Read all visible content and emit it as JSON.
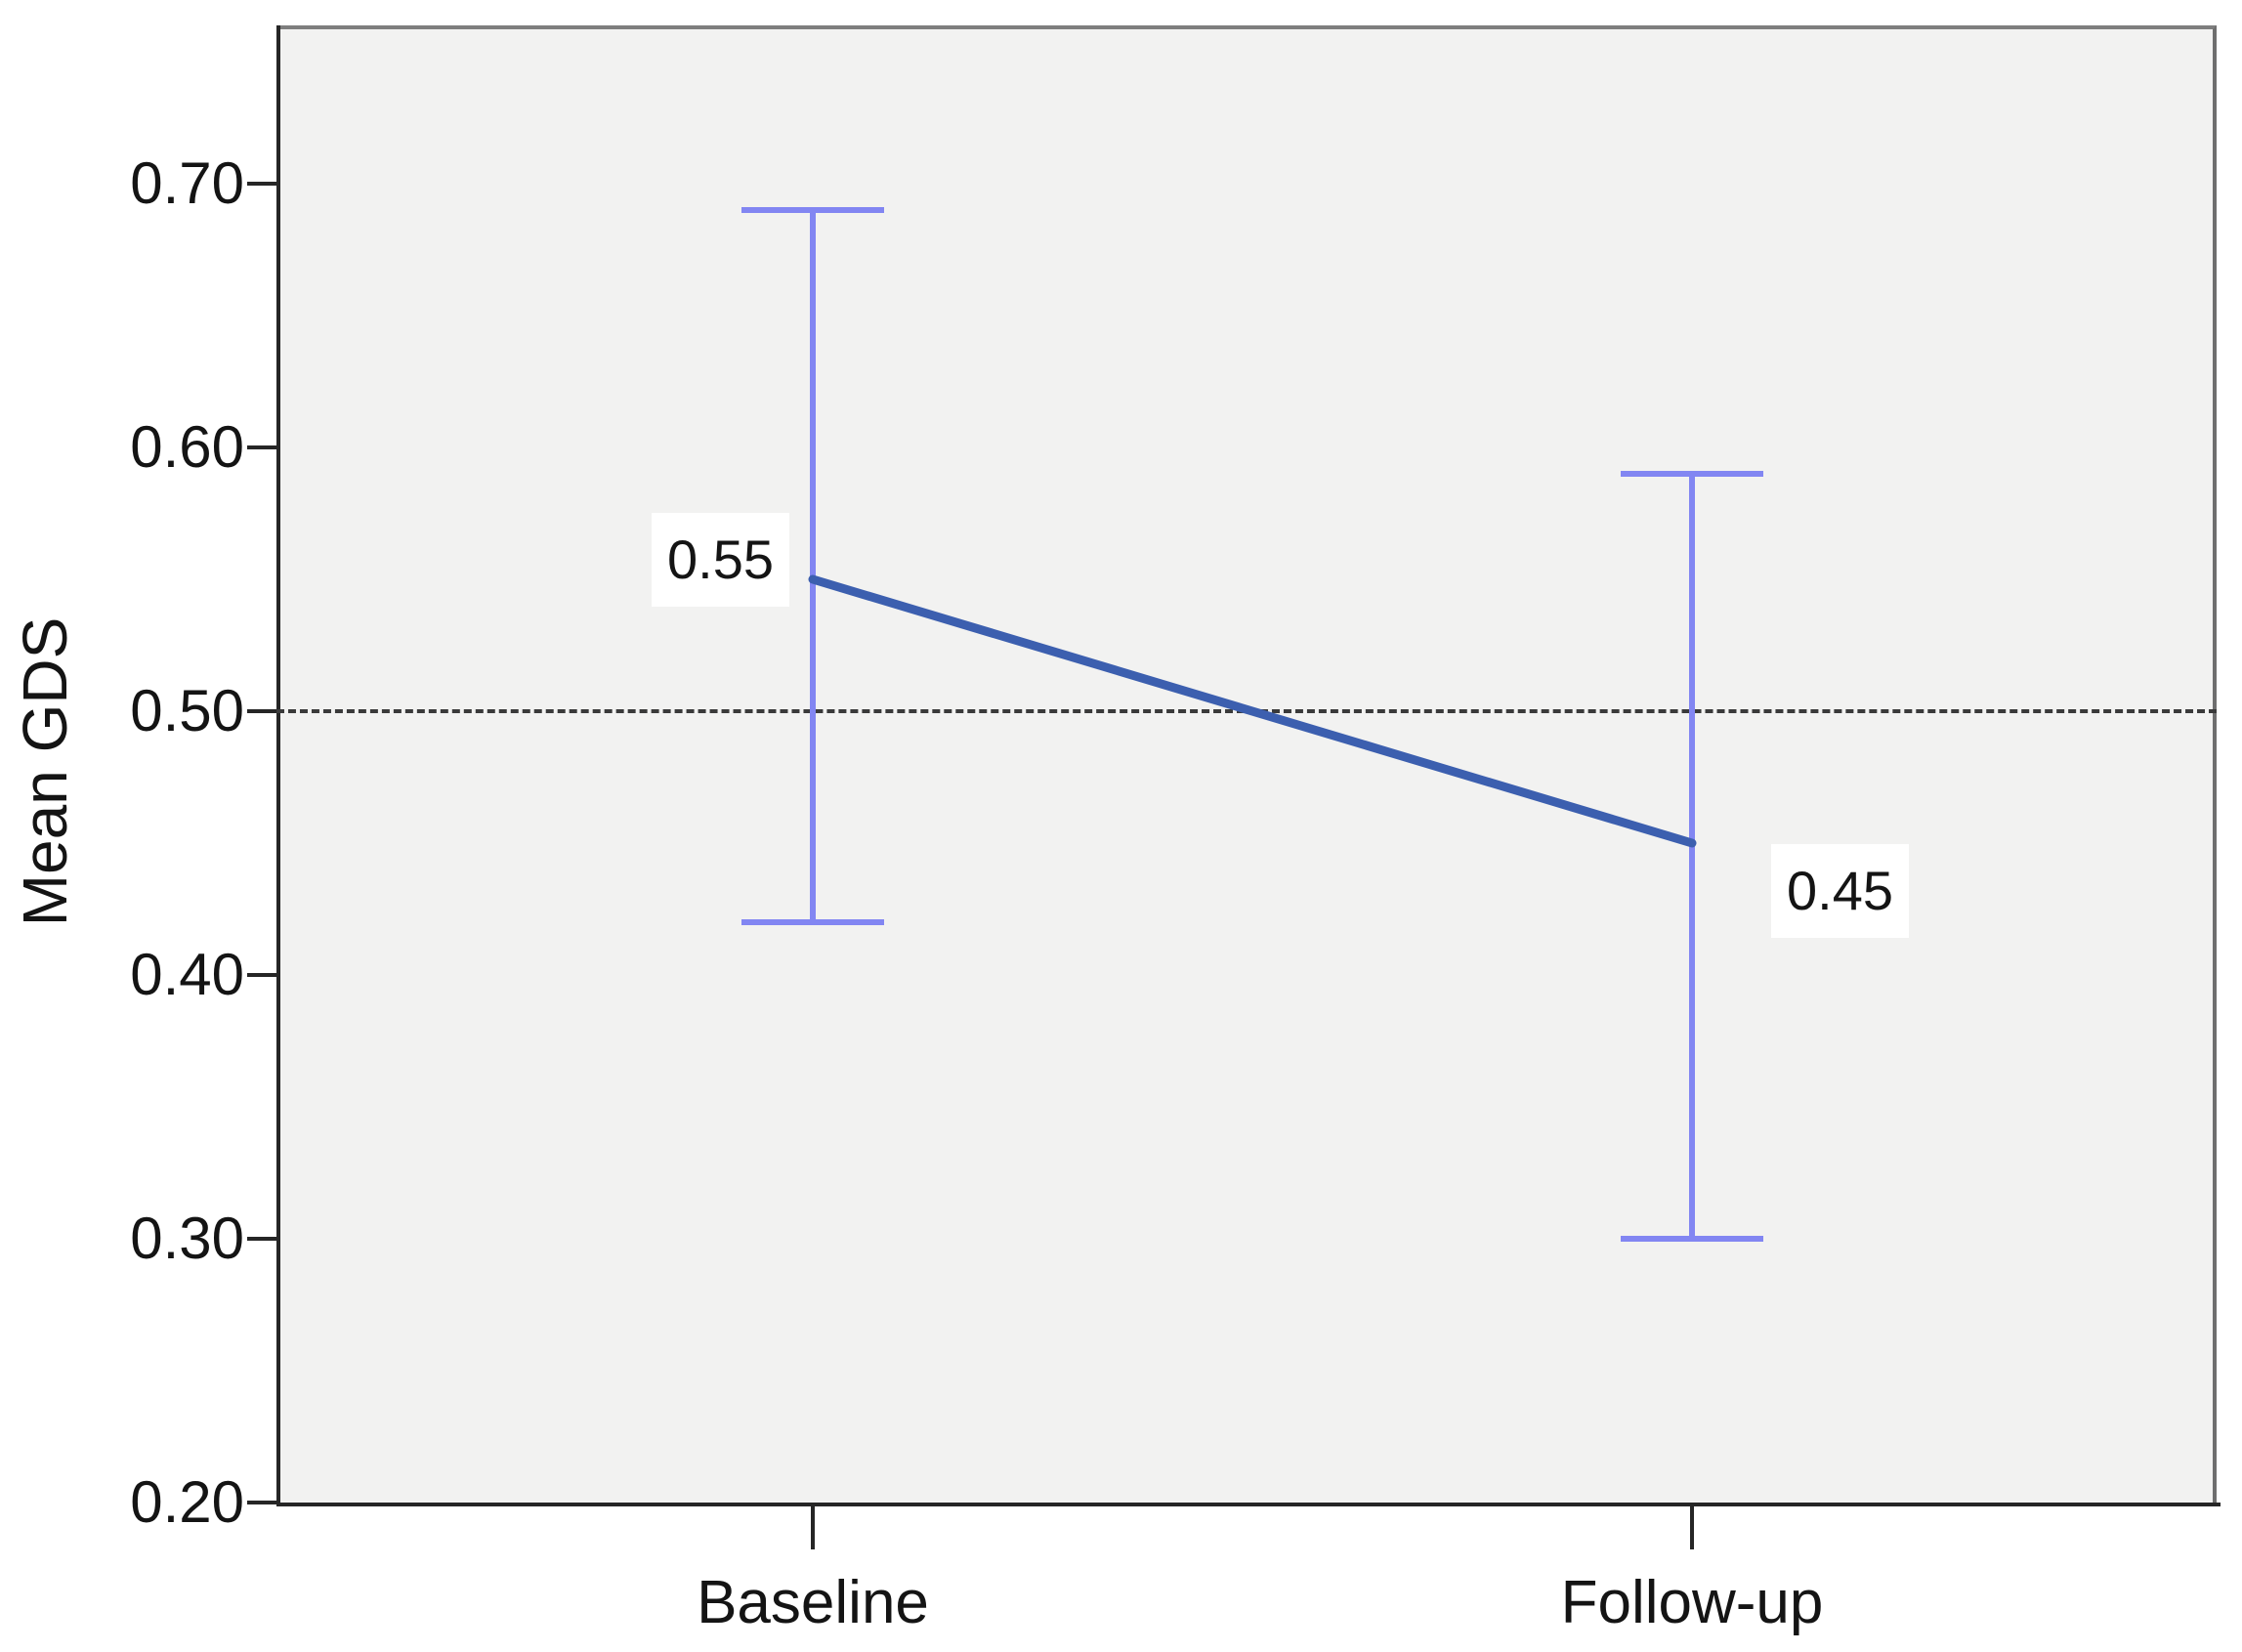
{
  "chart_data": {
    "type": "line",
    "title": "",
    "xlabel": "",
    "ylabel": "Mean GDS",
    "categories": [
      "Baseline",
      "Follow-up"
    ],
    "series": [
      {
        "name": "Mean GDS",
        "values": [
          0.55,
          0.45
        ],
        "ci_high": [
          0.69,
          0.59
        ],
        "ci_low": [
          0.42,
          0.3
        ],
        "point_labels": [
          "0.55",
          "0.45"
        ]
      }
    ],
    "yaxis": {
      "min": 0.2,
      "max": 0.7,
      "ticks": [
        {
          "label": "0.70",
          "value": 0.7
        },
        {
          "label": "0.60",
          "value": 0.6
        },
        {
          "label": "0.50",
          "value": 0.5
        },
        {
          "label": "0.40",
          "value": 0.4
        },
        {
          "label": "0.30",
          "value": 0.3
        },
        {
          "label": "0.20",
          "value": 0.2
        }
      ]
    },
    "ref_line": {
      "value": 0.5,
      "style": "dashed"
    },
    "legend_position": "none",
    "grid": false,
    "error_bars": true,
    "colors": {
      "line": "#3C5FAF",
      "error_bar": "#8286F2",
      "ref_line": "#3A3A3A",
      "plot_bg": "#F2F2F1",
      "axis": "#262626",
      "frame": "#7E7E7E",
      "text": "#141414",
      "point_label_bg": "#FFFFFF"
    }
  }
}
